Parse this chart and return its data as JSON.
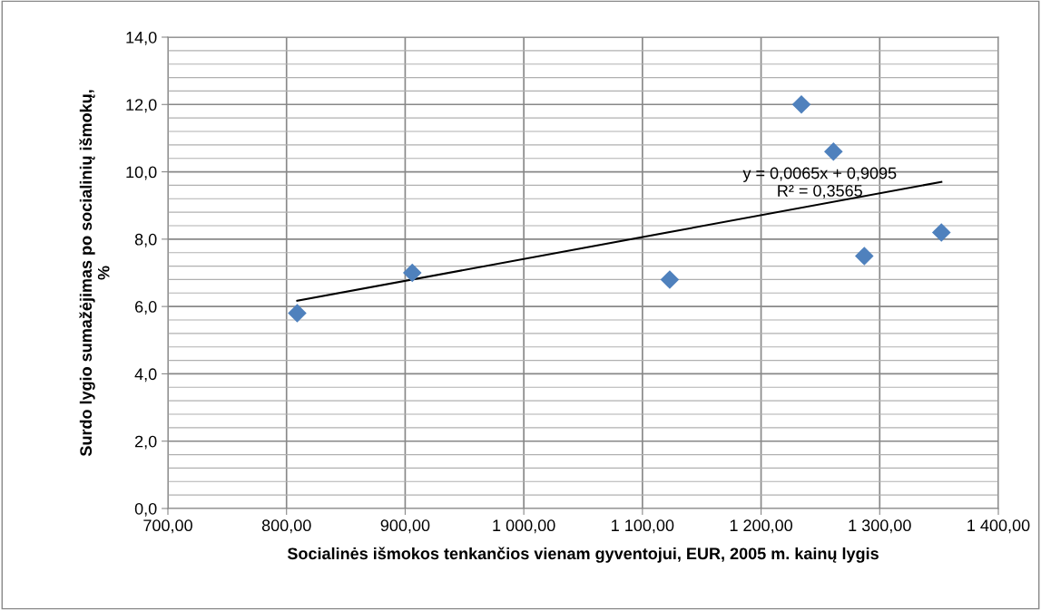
{
  "chart_data": {
    "type": "scatter",
    "xlabel": "Socialinės išmokos tenkančios vienam gyventojui, EUR, 2005 m. kainų lygis",
    "ylabel": "Surdo lygio sumažėjimas po socialinių išmokų,\n%",
    "series": [
      {
        "color": "#4f81bd",
        "marker": "diamond",
        "x": [
          809,
          906,
          1123,
          1234,
          1261,
          1287,
          1352
        ],
        "values": [
          5.8,
          7.0,
          6.8,
          12.0,
          10.6,
          7.5,
          8.2
        ]
      },
      {
        "type": "line",
        "color": "#000000",
        "marker": "none",
        "x": [
          809,
          1352
        ],
        "values": [
          6.17,
          9.7
        ]
      }
    ],
    "annotations": [
      "y = 0,0065x + 0,9095\nR² = 0,3565"
    ],
    "xlim": [
      700,
      1400
    ],
    "xticks": [
      {
        "value": 700,
        "label": "700,00"
      },
      {
        "value": 800,
        "label": "800,00"
      },
      {
        "value": 900,
        "label": "900,00"
      },
      {
        "value": 1000,
        "label": "1 000,00"
      },
      {
        "value": 1100,
        "label": "1 100,00"
      },
      {
        "value": 1200,
        "label": "1 200,00"
      },
      {
        "value": 1300,
        "label": "1 300,00"
      },
      {
        "value": 1400,
        "label": "1 400,00"
      }
    ],
    "ylim": [
      0,
      14
    ],
    "yticks": [
      {
        "value": 0,
        "label": "0,0"
      },
      {
        "value": 2,
        "label": "2,0"
      },
      {
        "value": 4,
        "label": "4,0"
      },
      {
        "value": 6,
        "label": "6,0"
      },
      {
        "value": 8,
        "label": "8,0"
      },
      {
        "value": 10,
        "label": "10,0"
      },
      {
        "value": 12,
        "label": "12,0"
      },
      {
        "value": 14,
        "label": "14,0"
      }
    ],
    "grid": true,
    "legend": false
  }
}
